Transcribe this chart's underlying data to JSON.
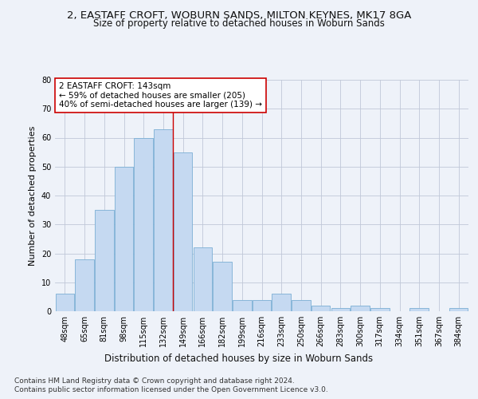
{
  "title_line1": "2, EASTAFF CROFT, WOBURN SANDS, MILTON KEYNES, MK17 8GA",
  "title_line2": "Size of property relative to detached houses in Woburn Sands",
  "xlabel": "Distribution of detached houses by size in Woburn Sands",
  "ylabel": "Number of detached properties",
  "footer_line1": "Contains HM Land Registry data © Crown copyright and database right 2024.",
  "footer_line2": "Contains public sector information licensed under the Open Government Licence v3.0.",
  "categories": [
    "48sqm",
    "65sqm",
    "81sqm",
    "98sqm",
    "115sqm",
    "132sqm",
    "149sqm",
    "166sqm",
    "182sqm",
    "199sqm",
    "216sqm",
    "233sqm",
    "250sqm",
    "266sqm",
    "283sqm",
    "300sqm",
    "317sqm",
    "334sqm",
    "351sqm",
    "367sqm",
    "384sqm"
  ],
  "values": [
    6,
    18,
    35,
    50,
    60,
    63,
    55,
    22,
    17,
    4,
    4,
    6,
    4,
    2,
    1,
    2,
    1,
    0,
    1,
    0,
    1
  ],
  "bar_color": "#c5d9f1",
  "bar_edge_color": "#7bafd4",
  "annotation_text": "2 EASTAFF CROFT: 143sqm\n← 59% of detached houses are smaller (205)\n40% of semi-detached houses are larger (139) →",
  "vline_x": 5.5,
  "vline_color": "#cc0000",
  "grid_color": "#c0c8d8",
  "ylim": [
    0,
    80
  ],
  "yticks": [
    0,
    10,
    20,
    30,
    40,
    50,
    60,
    70,
    80
  ],
  "background_color": "#eef2f9",
  "plot_bg_color": "#eef2f9",
  "title_fontsize": 9.5,
  "subtitle_fontsize": 8.5,
  "xlabel_fontsize": 8.5,
  "ylabel_fontsize": 8,
  "tick_fontsize": 7,
  "annotation_fontsize": 7.5,
  "footer_fontsize": 6.5
}
